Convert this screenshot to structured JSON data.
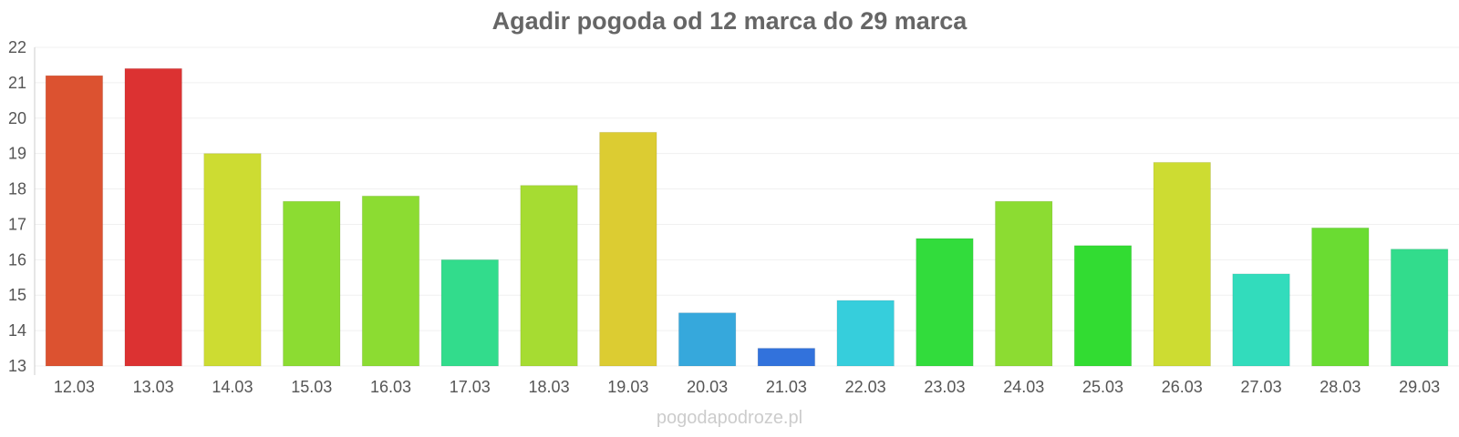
{
  "chart_data": {
    "type": "bar",
    "title": "Agadir pogoda od 12 marca do 29 marca",
    "categories": [
      "12.03",
      "13.03",
      "14.03",
      "15.03",
      "16.03",
      "17.03",
      "18.03",
      "19.03",
      "20.03",
      "21.03",
      "22.03",
      "23.03",
      "24.03",
      "25.03",
      "26.03",
      "27.03",
      "28.03",
      "29.03"
    ],
    "values": [
      21.2,
      21.4,
      19.0,
      17.65,
      17.8,
      16.0,
      18.1,
      19.6,
      14.5,
      13.5,
      14.85,
      16.6,
      17.65,
      16.4,
      18.75,
      15.6,
      16.9,
      16.3
    ],
    "colors": [
      "#dc5230",
      "#dc3232",
      "#cddc32",
      "#8cdc32",
      "#8cdc32",
      "#32dc8c",
      "#a6dc32",
      "#dccc32",
      "#36a8dc",
      "#3272dc",
      "#36cedc",
      "#32dc3c",
      "#8cdc32",
      "#32dc32",
      "#cddc32",
      "#32dcbc",
      "#6adc32",
      "#32dc8c"
    ],
    "ylim": [
      13,
      22
    ],
    "yticks": [
      13,
      14,
      15,
      16,
      17,
      18,
      19,
      20,
      21,
      22
    ],
    "grid": true,
    "xlabel": "",
    "ylabel": ""
  },
  "footer": {
    "watermark": "pogodapodroze.pl"
  }
}
